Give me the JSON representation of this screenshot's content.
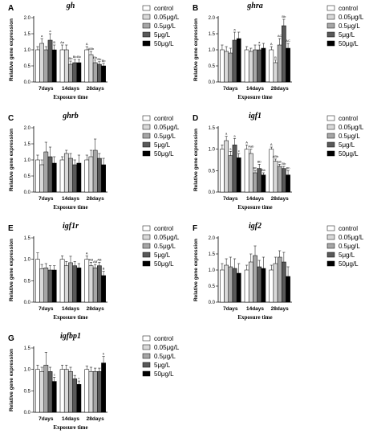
{
  "figure": {
    "legend": [
      "control",
      "0.05μg/L",
      "0.5μg/L",
      "5μg/L",
      "50μg/L"
    ],
    "colors": [
      "#ffffff",
      "#d9d9d9",
      "#a6a6a6",
      "#595959",
      "#000000"
    ],
    "ylabel": "Relative gene expression",
    "xlabel": "Exposure time"
  },
  "chart_data": [
    {
      "type": "bar",
      "letter": "A",
      "title": "gh",
      "categories": [
        "7days",
        "14days",
        "28days"
      ],
      "ylim": [
        0,
        2.0
      ],
      "yticks": [
        0.0,
        0.5,
        1.0,
        1.5,
        2.0
      ],
      "series": [
        {
          "name": "control",
          "values": [
            1.0,
            1.0,
            1.0
          ],
          "errors": [
            0.1,
            0.15,
            0.1
          ]
        },
        {
          "name": "0.05μg/L",
          "values": [
            1.2,
            1.0,
            0.85
          ],
          "errors": [
            0.15,
            0.15,
            0.1
          ]
        },
        {
          "name": "0.5μg/L",
          "values": [
            1.0,
            0.55,
            0.6
          ],
          "errors": [
            0.1,
            0.1,
            0.08
          ]
        },
        {
          "name": "5μg/L",
          "values": [
            1.3,
            0.6,
            0.55
          ],
          "errors": [
            0.2,
            0.1,
            0.08
          ]
        },
        {
          "name": "50μg/L",
          "values": [
            1.0,
            0.6,
            0.5
          ],
          "errors": [
            0.15,
            0.1,
            0.08
          ]
        }
      ],
      "labels": [
        [
          "",
          "a",
          "",
          "a",
          "B"
        ],
        [
          "Aa",
          "",
          "Bb",
          "Bb",
          "Bb"
        ],
        [
          "A",
          "ABb",
          "Bb",
          "Bb",
          "Bb"
        ]
      ]
    },
    {
      "type": "bar",
      "letter": "B",
      "title": "ghra",
      "categories": [
        "7days",
        "14days",
        "28days"
      ],
      "ylim": [
        0,
        2.0
      ],
      "yticks": [
        0.0,
        0.5,
        1.0,
        1.5,
        2.0
      ],
      "series": [
        {
          "name": "control",
          "values": [
            1.0,
            1.0,
            1.0
          ],
          "errors": [
            0.15,
            0.1,
            0.1
          ]
        },
        {
          "name": "0.05μg/L",
          "values": [
            0.95,
            0.95,
            0.6
          ],
          "errors": [
            0.15,
            0.1,
            0.08
          ]
        },
        {
          "name": "0.5μg/L",
          "values": [
            0.9,
            1.0,
            1.15
          ],
          "errors": [
            0.15,
            0.15,
            0.2
          ]
        },
        {
          "name": "5μg/L",
          "values": [
            1.3,
            1.0,
            1.75
          ],
          "errors": [
            0.25,
            0.15,
            0.2
          ]
        },
        {
          "name": "50μg/L",
          "values": [
            1.35,
            1.05,
            1.05
          ],
          "errors": [
            0.2,
            0.15,
            0.15
          ]
        }
      ],
      "labels": [
        [
          "",
          "",
          "",
          "a",
          ""
        ],
        [
          "",
          "",
          "",
          "a",
          ""
        ],
        [
          "A",
          "B",
          "AC",
          "Bb",
          "AC"
        ]
      ]
    },
    {
      "type": "bar",
      "letter": "C",
      "title": "ghrb",
      "categories": [
        "7days",
        "14days",
        "28days"
      ],
      "ylim": [
        0,
        2.0
      ],
      "yticks": [
        0.0,
        0.5,
        1.0,
        1.5,
        2.0
      ],
      "series": [
        {
          "name": "control",
          "values": [
            1.0,
            1.0,
            1.0
          ],
          "errors": [
            0.15,
            0.1,
            0.15
          ]
        },
        {
          "name": "0.05μg/L",
          "values": [
            0.85,
            1.2,
            1.1
          ],
          "errors": [
            0.15,
            0.1,
            0.2
          ]
        },
        {
          "name": "0.5μg/L",
          "values": [
            1.25,
            1.05,
            1.3
          ],
          "errors": [
            0.3,
            0.15,
            0.35
          ]
        },
        {
          "name": "5μg/L",
          "values": [
            1.1,
            0.85,
            1.05
          ],
          "errors": [
            0.3,
            0.15,
            0.15
          ]
        },
        {
          "name": "50μg/L",
          "values": [
            0.9,
            0.9,
            0.85
          ],
          "errors": [
            0.2,
            0.25,
            0.2
          ]
        }
      ],
      "labels": [
        [
          "",
          "",
          "",
          "",
          ""
        ],
        [
          "",
          "",
          "",
          "",
          ""
        ],
        [
          "",
          "",
          "",
          "",
          ""
        ]
      ]
    },
    {
      "type": "bar",
      "letter": "D",
      "title": "igf1",
      "categories": [
        "7days",
        "14days",
        "28days"
      ],
      "ylim": [
        0,
        1.5
      ],
      "yticks": [
        0.0,
        0.5,
        1.0,
        1.5
      ],
      "series": [
        {
          "name": "control",
          "values": [
            1.0,
            1.0,
            1.0
          ],
          "errors": [
            0.1,
            0.1,
            0.05
          ]
        },
        {
          "name": "0.05μg/L",
          "values": [
            1.2,
            0.9,
            0.72
          ],
          "errors": [
            0.1,
            0.1,
            0.05
          ]
        },
        {
          "name": "0.5μg/L",
          "values": [
            0.85,
            0.45,
            0.6
          ],
          "errors": [
            0.1,
            0.05,
            0.05
          ]
        },
        {
          "name": "5μg/L",
          "values": [
            1.1,
            0.55,
            0.55
          ],
          "errors": [
            0.15,
            0.1,
            0.05
          ]
        },
        {
          "name": "50μg/L",
          "values": [
            0.8,
            0.4,
            0.4
          ],
          "errors": [
            0.1,
            0.05,
            0.1
          ]
        }
      ],
      "labels": [
        [
          "",
          "a",
          "a",
          "a",
          "c"
        ],
        [
          "A",
          "Aab",
          "Bb",
          "Bb",
          "Bb"
        ],
        [
          "A",
          "ABb",
          "ab",
          "Bb",
          "Bb"
        ]
      ]
    },
    {
      "type": "bar",
      "letter": "E",
      "title": "igf1r",
      "categories": [
        "7days",
        "14days",
        "28days"
      ],
      "ylim": [
        0,
        1.5
      ],
      "yticks": [
        0.0,
        0.5,
        1.0,
        1.5
      ],
      "series": [
        {
          "name": "control",
          "values": [
            1.0,
            1.0,
            1.0
          ],
          "errors": [
            0.15,
            0.08,
            0.08
          ]
        },
        {
          "name": "0.05μg/L",
          "values": [
            0.78,
            0.85,
            0.85
          ],
          "errors": [
            0.1,
            0.1,
            0.08
          ]
        },
        {
          "name": "0.5μg/L",
          "values": [
            0.8,
            0.92,
            0.8
          ],
          "errors": [
            0.1,
            0.15,
            0.08
          ]
        },
        {
          "name": "5μg/L",
          "values": [
            0.75,
            0.85,
            0.85
          ],
          "errors": [
            0.1,
            0.1,
            0.08
          ]
        },
        {
          "name": "50μg/L",
          "values": [
            0.75,
            0.8,
            0.62
          ],
          "errors": [
            0.1,
            0.1,
            0.1
          ]
        }
      ],
      "labels": [
        [
          "",
          "",
          "",
          "",
          ""
        ],
        [
          "",
          "",
          "",
          "",
          ""
        ],
        [
          "A",
          "AB",
          "AB",
          "AB",
          "B"
        ]
      ]
    },
    {
      "type": "bar",
      "letter": "F",
      "title": "igf2",
      "categories": [
        "7days",
        "14days",
        "28days"
      ],
      "ylim": [
        0,
        2.0
      ],
      "yticks": [
        0.0,
        0.5,
        1.0,
        1.5,
        2.0
      ],
      "series": [
        {
          "name": "control",
          "values": [
            1.0,
            1.0,
            1.0
          ],
          "errors": [
            0.2,
            0.15,
            0.15
          ]
        },
        {
          "name": "0.05μg/L",
          "values": [
            1.15,
            1.25,
            1.2
          ],
          "errors": [
            0.2,
            0.25,
            0.2
          ]
        },
        {
          "name": "0.5μg/L",
          "values": [
            1.1,
            1.45,
            1.4
          ],
          "errors": [
            0.3,
            0.3,
            0.2
          ]
        },
        {
          "name": "5μg/L",
          "values": [
            1.05,
            1.1,
            1.25
          ],
          "errors": [
            0.3,
            0.2,
            0.3
          ]
        },
        {
          "name": "50μg/L",
          "values": [
            0.9,
            1.05,
            0.8
          ],
          "errors": [
            0.3,
            0.35,
            0.3
          ]
        }
      ],
      "labels": [
        [
          "",
          "",
          "",
          "",
          ""
        ],
        [
          "",
          "",
          "",
          "",
          ""
        ],
        [
          "",
          "",
          "",
          "",
          ""
        ]
      ]
    },
    {
      "type": "bar",
      "letter": "G",
      "title": "igfbp1",
      "categories": [
        "7days",
        "14days",
        "28days"
      ],
      "ylim": [
        0,
        1.5
      ],
      "yticks": [
        0.0,
        0.5,
        1.0,
        1.5
      ],
      "series": [
        {
          "name": "control",
          "values": [
            1.0,
            1.0,
            1.0
          ],
          "errors": [
            0.1,
            0.1,
            0.08
          ]
        },
        {
          "name": "0.05μg/L",
          "values": [
            0.95,
            1.0,
            0.95
          ],
          "errors": [
            0.1,
            0.1,
            0.1
          ]
        },
        {
          "name": "0.5μg/L",
          "values": [
            1.1,
            0.95,
            0.95
          ],
          "errors": [
            0.3,
            0.1,
            0.08
          ]
        },
        {
          "name": "5μg/L",
          "values": [
            0.95,
            0.78,
            0.95
          ],
          "errors": [
            0.1,
            0.08,
            0.08
          ]
        },
        {
          "name": "50μg/L",
          "values": [
            0.72,
            0.65,
            1.15
          ],
          "errors": [
            0.1,
            0.08,
            0.15
          ]
        }
      ],
      "labels": [
        [
          "",
          "",
          "",
          "",
          "c"
        ],
        [
          "",
          "",
          "",
          "",
          "c"
        ],
        [
          "",
          "",
          "",
          "",
          "b"
        ]
      ]
    }
  ]
}
